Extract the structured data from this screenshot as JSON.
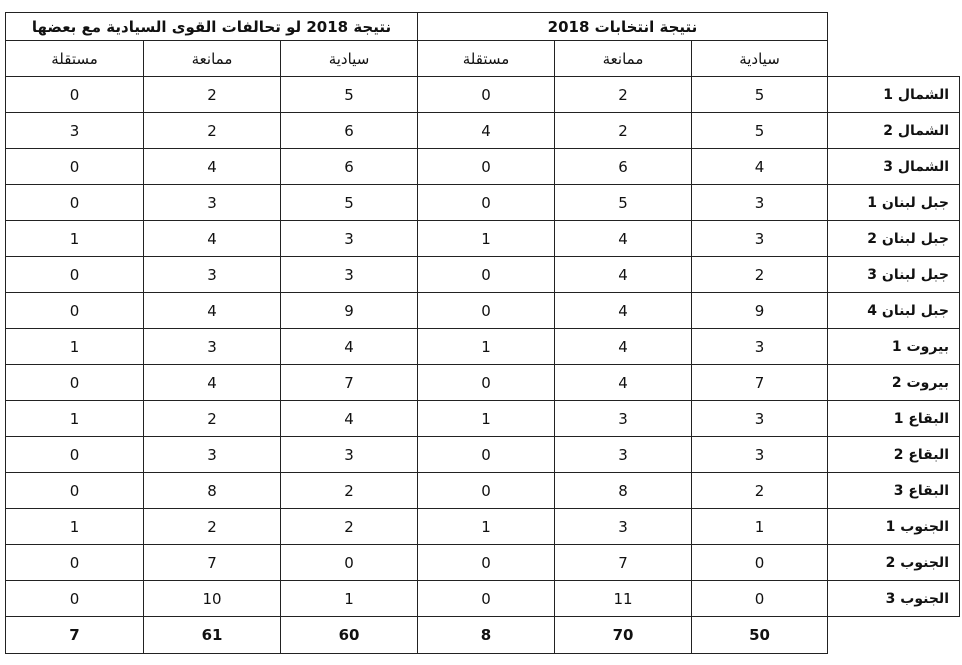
{
  "header": {
    "group_2018": "نتيجة انتخابات 2018",
    "group_alliance": "نتيجة 2018 لو تحالفات القوى السيادية مع بعضها",
    "columns": [
      "سيادية",
      "ممانعة",
      "مستقلة"
    ]
  },
  "rows": [
    {
      "district": "الشمال 1",
      "r2018": [
        5,
        2,
        0
      ],
      "alliance": [
        5,
        2,
        0
      ]
    },
    {
      "district": "الشمال 2",
      "r2018": [
        5,
        2,
        4
      ],
      "alliance": [
        6,
        2,
        3
      ]
    },
    {
      "district": "الشمال 3",
      "r2018": [
        4,
        6,
        0
      ],
      "alliance": [
        6,
        4,
        0
      ]
    },
    {
      "district": "جبل لبنان 1",
      "r2018": [
        3,
        5,
        0
      ],
      "alliance": [
        5,
        3,
        0
      ]
    },
    {
      "district": "جبل لبنان 2",
      "r2018": [
        3,
        4,
        1
      ],
      "alliance": [
        3,
        4,
        1
      ]
    },
    {
      "district": "جبل لبنان 3",
      "r2018": [
        2,
        4,
        0
      ],
      "alliance": [
        3,
        3,
        0
      ]
    },
    {
      "district": "جبل لبنان 4",
      "r2018": [
        9,
        4,
        0
      ],
      "alliance": [
        9,
        4,
        0
      ]
    },
    {
      "district": "بيروت 1",
      "r2018": [
        3,
        4,
        1
      ],
      "alliance": [
        4,
        3,
        1
      ]
    },
    {
      "district": "بيروت 2",
      "r2018": [
        7,
        4,
        0
      ],
      "alliance": [
        7,
        4,
        0
      ]
    },
    {
      "district": "البقاع 1",
      "r2018": [
        3,
        3,
        1
      ],
      "alliance": [
        4,
        2,
        1
      ]
    },
    {
      "district": "البقاع 2",
      "r2018": [
        3,
        3,
        0
      ],
      "alliance": [
        3,
        3,
        0
      ]
    },
    {
      "district": "البقاع 3",
      "r2018": [
        2,
        8,
        0
      ],
      "alliance": [
        2,
        8,
        0
      ]
    },
    {
      "district": "الجنوب 1",
      "r2018": [
        1,
        3,
        1
      ],
      "alliance": [
        2,
        2,
        1
      ]
    },
    {
      "district": "الجنوب 2",
      "r2018": [
        0,
        7,
        0
      ],
      "alliance": [
        0,
        7,
        0
      ]
    },
    {
      "district": "الجنوب 3",
      "r2018": [
        0,
        11,
        0
      ],
      "alliance": [
        1,
        10,
        0
      ]
    }
  ],
  "totals": {
    "r2018": [
      50,
      70,
      8
    ],
    "alliance": [
      60,
      61,
      7
    ]
  }
}
